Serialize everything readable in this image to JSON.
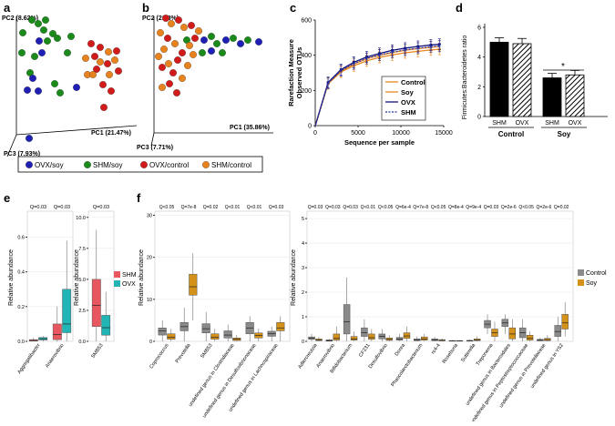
{
  "panels": {
    "a": {
      "label": "a",
      "pc1": "PC1 (21.47%)",
      "pc2": "PC2 (8.62%)",
      "pc3": "PC3 (7.93%)"
    },
    "b": {
      "label": "b",
      "pc1": "PC1 (35.86%)",
      "pc2": "PC2 (21.8%)",
      "pc3": "PC3 (7.71%)"
    },
    "c": {
      "label": "c"
    },
    "d": {
      "label": "d"
    },
    "e": {
      "label": "e"
    },
    "f": {
      "label": "f"
    }
  },
  "pca_legend": [
    {
      "label": "OVX/soy",
      "color": "#1f1fb4"
    },
    {
      "label": "SHM/soy",
      "color": "#1a8a1a"
    },
    {
      "label": "OVX/control",
      "color": "#d11a1a"
    },
    {
      "label": "SHM/control",
      "color": "#e8821c"
    }
  ],
  "colors": {
    "control_orange": "#e8861f",
    "ovx_navy": "#12127a",
    "shm_blue": "#2233aa",
    "shm_red": "#e8575f",
    "ovx_teal": "#22b5b5",
    "ctrl_grey": "#8a8a8a",
    "soy_gold": "#d4921a"
  },
  "chart_data": [
    {
      "id": "c",
      "type": "line",
      "xlabel": "Sequence per sample",
      "ylabel": "Rarefaction Measure\nObserved OTUs",
      "xlim": [
        0,
        15000
      ],
      "ylim": [
        0,
        600
      ],
      "xticks": [
        0,
        5000,
        10000,
        15000
      ],
      "yticks": [
        0,
        200,
        400,
        600
      ],
      "x": [
        10,
        1500,
        3000,
        4500,
        6000,
        7500,
        9000,
        10500,
        12000,
        13500,
        14500
      ],
      "series": [
        {
          "name": "Control",
          "values": [
            0,
            240,
            310,
            350,
            380,
            400,
            415,
            428,
            438,
            445,
            450
          ]
        },
        {
          "name": "Soy",
          "values": [
            0,
            238,
            305,
            340,
            368,
            388,
            402,
            414,
            422,
            430,
            434
          ]
        },
        {
          "name": "OVX",
          "values": [
            0,
            245,
            318,
            360,
            390,
            410,
            428,
            440,
            450,
            458,
            462
          ]
        },
        {
          "name": "SHM",
          "values": [
            0,
            242,
            312,
            352,
            382,
            402,
            418,
            430,
            440,
            448,
            452
          ]
        }
      ],
      "legend_position": "inside-right"
    },
    {
      "id": "d",
      "type": "bar",
      "ylabel": "Firmicutes:Bacteroidetes ratio",
      "ylim": [
        0,
        6
      ],
      "yticks": [
        0,
        2,
        4,
        6
      ],
      "categories": [
        "SHM",
        "OVX",
        "SHM",
        "OVX"
      ],
      "groups": [
        "Control",
        "Soy"
      ],
      "values": [
        5.0,
        4.9,
        2.6,
        2.8
      ],
      "errors": [
        0.3,
        0.35,
        0.3,
        0.3
      ],
      "annotation": "*"
    },
    {
      "id": "e",
      "type": "box",
      "ylabel": "Relative abundance",
      "legend": [
        "SHM",
        "OVX"
      ],
      "left": {
        "ylim": [
          0,
          0.75
        ],
        "yticks": [
          0.0,
          0.2,
          0.4,
          0.6
        ],
        "categories": [
          "Aggregatibacter",
          "Anaerovibrio"
        ],
        "q": [
          "Q=0.03",
          "Q=0.03"
        ],
        "boxes": [
          {
            "SHM": [
              0,
              0.002,
              0.005,
              0.01,
              0.02
            ],
            "OVX": [
              0,
              0.008,
              0.015,
              0.022,
              0.03
            ]
          },
          {
            "SHM": [
              0,
              0.01,
              0.04,
              0.1,
              0.2
            ],
            "OVX": [
              0,
              0.05,
              0.1,
              0.3,
              0.58
            ]
          }
        ]
      },
      "right": {
        "ylim": [
          0,
          10.5
        ],
        "yticks": [
          0.0,
          2.5,
          5.0,
          7.5,
          10.0
        ],
        "categories": [
          "SMB53"
        ],
        "q": [
          "Q=0.03"
        ],
        "boxes": [
          {
            "SHM": [
              0,
              1.2,
              2.9,
              5.0,
              9.0
            ],
            "OVX": [
              0,
              0.5,
              1.1,
              2.1,
              4.0
            ]
          }
        ]
      }
    },
    {
      "id": "f",
      "type": "box",
      "ylabel": "Relative abundance",
      "legend": [
        "Control",
        "Soy"
      ],
      "left": {
        "ylim": [
          0,
          31
        ],
        "yticks": [
          0,
          10,
          20,
          30
        ],
        "categories": [
          "Coprococcus",
          "Prevotella",
          "SMB53",
          "undefined genus in Clostridiaceae",
          "undefined genus in Desulfovibrionaceae",
          "undefined genus in Lachnospiraceae"
        ],
        "q": [
          "Q<0.05",
          "Q=7e-8",
          "Q=0.02",
          "Q<0.01",
          "Q<0.01",
          "Q=0.03"
        ],
        "boxes": [
          {
            "Control": [
              0,
              1.5,
              2.5,
              3.2,
              5
            ],
            "Soy": [
              0,
              0.5,
              1.0,
              1.8,
              3
            ]
          },
          {
            "Control": [
              0,
              2.5,
              3.5,
              4.5,
              8
            ],
            "Soy": [
              5,
              11,
              13,
              16,
              21
            ]
          },
          {
            "Control": [
              0,
              2,
              3,
              4.2,
              7
            ],
            "Soy": [
              0,
              0.5,
              1.0,
              1.8,
              3
            ]
          },
          {
            "Control": [
              0,
              0.8,
              1.5,
              2.5,
              4
            ],
            "Soy": [
              0,
              0.2,
              0.5,
              0.8,
              1.5
            ]
          },
          {
            "Control": [
              0,
              1.8,
              3.2,
              4.5,
              6
            ],
            "Soy": [
              0,
              0.8,
              1.4,
              2,
              3
            ]
          },
          {
            "Control": [
              0,
              1.2,
              1.8,
              2.4,
              3.5
            ],
            "Soy": [
              0,
              2.5,
              3.2,
              4.5,
              6
            ]
          }
        ]
      },
      "right": {
        "ylim": [
          0,
          5.3
        ],
        "yticks": [
          0,
          1,
          2,
          3,
          4,
          5
        ],
        "categories": [
          "Adlercreutzia",
          "Anaerovibrio",
          "Bifidobacterium",
          "CF231",
          "Desulfovibrio",
          "Dorea",
          "Phascolarctobacterium",
          "rc4-4",
          "Roseburia",
          "Sutterella",
          "Treponema",
          "undefined genus in Bacteroidales",
          "undefined genus in Peptostreptococcaceae",
          "undefined genus in Prevotellaceae",
          "undefined genus in YS2"
        ],
        "q": [
          "Q=0.03",
          "Q=0.03",
          "Q=0.03",
          "Q<0.01",
          "Q<0.05",
          "Q=6e-4",
          "Q=7e-8",
          "Q<0.05",
          "Q=8e-4",
          "Q=9e-4",
          "Q=0.03",
          "Q=2e-6",
          "Q<0.05",
          "Q=2e-6",
          "Q=0.02"
        ],
        "boxes": [
          {
            "Control": [
              0,
              0.08,
              0.12,
              0.18,
              0.3
            ],
            "Soy": [
              0,
              0.03,
              0.06,
              0.1,
              0.18
            ]
          },
          {
            "Control": [
              0,
              0.01,
              0.03,
              0.06,
              0.1
            ],
            "Soy": [
              0,
              0.05,
              0.12,
              0.3,
              0.6
            ]
          },
          {
            "Control": [
              0,
              0.3,
              0.8,
              1.5,
              2.6
            ],
            "Soy": [
              0,
              0.05,
              0.1,
              0.2,
              0.4
            ]
          },
          {
            "Control": [
              0,
              0.2,
              0.35,
              0.55,
              0.9
            ],
            "Soy": [
              0,
              0.08,
              0.15,
              0.3,
              0.5
            ]
          },
          {
            "Control": [
              0,
              0.1,
              0.2,
              0.3,
              0.5
            ],
            "Soy": [
              0,
              0.04,
              0.08,
              0.14,
              0.25
            ]
          },
          {
            "Control": [
              0,
              0.05,
              0.1,
              0.16,
              0.3
            ],
            "Soy": [
              0,
              0.12,
              0.22,
              0.35,
              0.6
            ]
          },
          {
            "Control": [
              0,
              0.03,
              0.06,
              0.1,
              0.2
            ],
            "Soy": [
              0,
              0.05,
              0.1,
              0.18,
              0.3
            ]
          },
          {
            "Control": [
              0,
              0.03,
              0.06,
              0.1,
              0.18
            ],
            "Soy": [
              0,
              0.02,
              0.04,
              0.07,
              0.12
            ]
          },
          {
            "Control": [
              0,
              0.01,
              0.02,
              0.03,
              0.06
            ],
            "Soy": [
              0,
              0.01,
              0.02,
              0.03,
              0.05
            ]
          },
          {
            "Control": [
              0,
              0.01,
              0.02,
              0.04,
              0.08
            ],
            "Soy": [
              0,
              0.03,
              0.06,
              0.1,
              0.2
            ]
          },
          {
            "Control": [
              0.3,
              0.55,
              0.7,
              0.85,
              1.1
            ],
            "Soy": [
              0,
              0.2,
              0.35,
              0.5,
              0.8
            ]
          },
          {
            "Control": [
              0.3,
              0.6,
              0.75,
              0.9,
              1.1
            ],
            "Soy": [
              0,
              0.1,
              0.3,
              0.55,
              0.9
            ]
          },
          {
            "Control": [
              0,
              0.15,
              0.35,
              0.55,
              0.9
            ],
            "Soy": [
              0,
              0.05,
              0.12,
              0.25,
              0.4
            ]
          },
          {
            "Control": [
              0,
              0.02,
              0.05,
              0.08,
              0.15
            ],
            "Soy": [
              0,
              0.03,
              0.07,
              0.12,
              0.25
            ]
          },
          {
            "Control": [
              0,
              0.2,
              0.4,
              0.65,
              1.0
            ],
            "Soy": [
              0.2,
              0.5,
              0.75,
              1.1,
              1.6
            ]
          }
        ]
      }
    }
  ]
}
